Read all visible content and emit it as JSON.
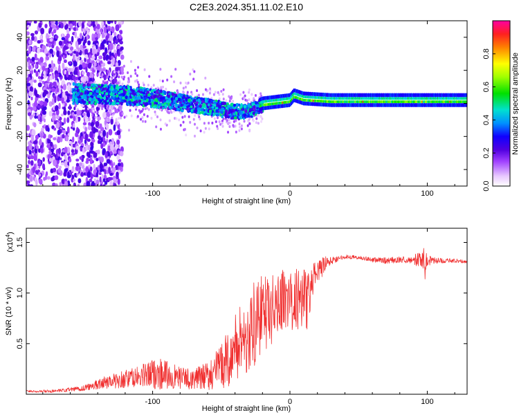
{
  "title": "C2E3.2024.351.11.02.E10",
  "colors": {
    "snr_line": "#f03030",
    "axis": "#000000",
    "background": "#ffffff"
  },
  "chart_data": [
    {
      "type": "heatmap",
      "name": "spectrogram",
      "xlabel": "Height of straight line (km)",
      "ylabel": "Frequency (Hz)",
      "xlim": [
        -192,
        129
      ],
      "ylim": [
        -50,
        50
      ],
      "xticks": [
        -100,
        0,
        100
      ],
      "xtick_labels": [
        "-100",
        "0",
        "100"
      ],
      "yticks": [
        -40,
        -20,
        0,
        20,
        40
      ],
      "ytick_labels": [
        "-40",
        "-20",
        "0",
        "20",
        "40"
      ],
      "signal_center_hz": [
        [
          -160,
          6
        ],
        [
          -120,
          5
        ],
        [
          -90,
          2
        ],
        [
          -60,
          -2
        ],
        [
          -40,
          -5
        ],
        [
          -30,
          -5
        ],
        [
          -25,
          -3
        ],
        [
          -20,
          -1
        ],
        [
          -10,
          0
        ],
        [
          0,
          1
        ],
        [
          3,
          4
        ],
        [
          10,
          2
        ],
        [
          30,
          1
        ],
        [
          60,
          1
        ],
        [
          90,
          1
        ],
        [
          129,
          1
        ]
      ],
      "colorbar": {
        "label": "Normalized spectral amplitude",
        "range": [
          0,
          1
        ],
        "ticks": [
          0.0,
          0.2,
          0.4,
          0.6,
          0.8
        ],
        "tick_labels": [
          "0.0",
          "0.2",
          "0.4",
          "0.6",
          "0.8"
        ]
      }
    },
    {
      "type": "line",
      "name": "snr",
      "xlabel": "Height of straight line (km)",
      "ylabel": "SNR (10 * v/v)",
      "y_multiplier_label": "(x10",
      "y_multiplier_exponent": "4",
      "xlim": [
        -192,
        129
      ],
      "ylim": [
        0,
        16400
      ],
      "xticks": [
        -100,
        0,
        100
      ],
      "xtick_labels": [
        "-100",
        "0",
        "100"
      ],
      "yticks": [
        5000,
        10000,
        15000
      ],
      "ytick_labels": [
        "0.5",
        "1.0",
        "1.5"
      ],
      "series": [
        {
          "name": "SNR",
          "x": [
            -192,
            -170,
            -150,
            -140,
            -130,
            -120,
            -110,
            -100,
            -95,
            -90,
            -80,
            -70,
            -60,
            -50,
            -45,
            -40,
            -35,
            -30,
            -25,
            -20,
            -15,
            -10,
            -5,
            0,
            5,
            10,
            13,
            15,
            20,
            25,
            30,
            35,
            40,
            50,
            60,
            70,
            80,
            90,
            95,
            98,
            100,
            110,
            120,
            129
          ],
          "mean": [
            300,
            300,
            600,
            1000,
            1300,
            1500,
            1700,
            2000,
            2100,
            1900,
            1600,
            1500,
            1800,
            2800,
            3500,
            4500,
            5500,
            6000,
            7000,
            8000,
            8000,
            9000,
            9500,
            9000,
            9500,
            10000,
            9000,
            10500,
            12000,
            12800,
            13200,
            13400,
            13600,
            13500,
            13300,
            13200,
            13300,
            13300,
            13300,
            13000,
            13200,
            13200,
            13200,
            13100
          ],
          "noise": [
            100,
            150,
            300,
            500,
            700,
            900,
            1100,
            1500,
            1600,
            1400,
            1100,
            1000,
            1400,
            2200,
            2800,
            3500,
            4000,
            4500,
            4200,
            3800,
            3500,
            3200,
            3000,
            3000,
            3200,
            3600,
            3000,
            2200,
            1300,
            800,
            400,
            250,
            200,
            200,
            250,
            300,
            300,
            400,
            1000,
            2200,
            500,
            250,
            200,
            150
          ]
        }
      ]
    }
  ]
}
